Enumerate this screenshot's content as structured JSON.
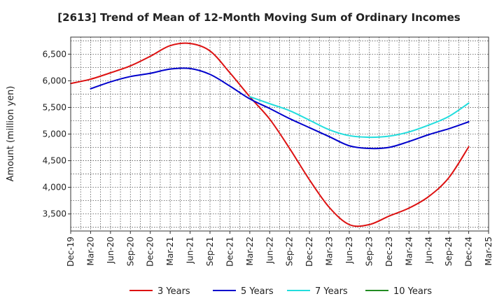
{
  "chart_data": {
    "type": "line",
    "title": "[2613]  Trend of Mean of 12-Month Moving Sum of Ordinary Incomes",
    "xlabel": "",
    "ylabel": "Amount (million yen)",
    "ylim": [
      3180,
      6820
    ],
    "yticks": [
      3500,
      4000,
      4500,
      5000,
      5500,
      6000,
      6500
    ],
    "ytick_labels": [
      "3,500",
      "4,000",
      "4,500",
      "5,000",
      "5,500",
      "6,000",
      "6,500"
    ],
    "categories": [
      "Dec-19",
      "Mar-20",
      "Jun-20",
      "Sep-20",
      "Dec-20",
      "Mar-21",
      "Jun-21",
      "Sep-21",
      "Dec-21",
      "Mar-22",
      "Jun-22",
      "Sep-22",
      "Dec-22",
      "Mar-23",
      "Jun-23",
      "Sep-23",
      "Dec-23",
      "Mar-24",
      "Jun-24",
      "Sep-24",
      "Dec-24",
      "Mar-25"
    ],
    "grid": true,
    "legend_position": "bottom",
    "series": [
      {
        "name": "3 Years",
        "color": "#dd1111",
        "values": [
          5950,
          6030,
          6150,
          6280,
          6460,
          6660,
          6700,
          6560,
          6150,
          5700,
          5280,
          4730,
          4140,
          3620,
          3300,
          3300,
          3460,
          3610,
          3830,
          4180,
          4760,
          null
        ]
      },
      {
        "name": "5 Years",
        "color": "#0000cc",
        "values": [
          null,
          5850,
          5980,
          6080,
          6140,
          6220,
          6230,
          6120,
          5900,
          5660,
          5480,
          5290,
          5120,
          4950,
          4780,
          4730,
          4750,
          4860,
          4990,
          5100,
          5230,
          null
        ]
      },
      {
        "name": "7 Years",
        "color": "#22dddd",
        "values": [
          null,
          null,
          null,
          null,
          null,
          null,
          null,
          null,
          null,
          5700,
          5570,
          5440,
          5260,
          5080,
          4970,
          4940,
          4960,
          5040,
          5170,
          5330,
          5580,
          null
        ]
      },
      {
        "name": "10 Years",
        "color": "#228b22",
        "values": [
          null,
          null,
          null,
          null,
          null,
          null,
          null,
          null,
          null,
          null,
          null,
          null,
          null,
          null,
          null,
          null,
          null,
          null,
          null,
          null,
          null,
          null
        ]
      }
    ]
  }
}
